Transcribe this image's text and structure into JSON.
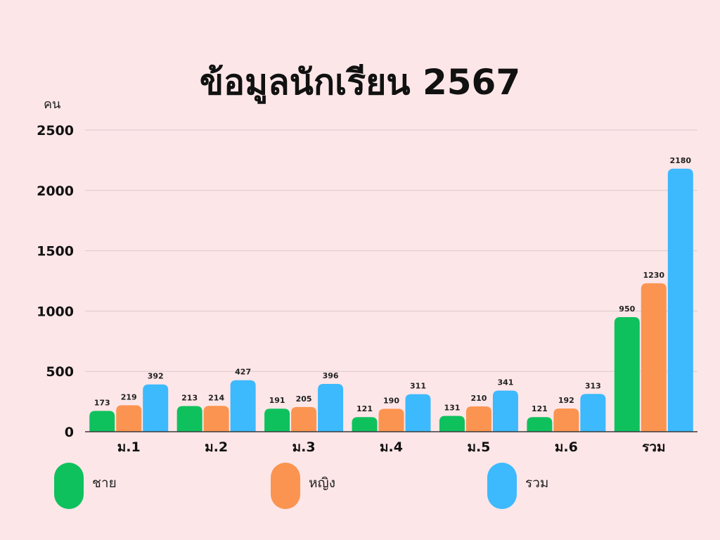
{
  "title": "ข้อมูลนักเรียน 2567",
  "unit_label": "คน",
  "colors": {
    "background": "#fde6e8",
    "male": "#0fc15d",
    "female": "#fb9450",
    "total": "#3db9fd",
    "grid": "#d9c9cb"
  },
  "chart_data": {
    "type": "bar",
    "title": "ข้อมูลนักเรียน 2567",
    "ylabel": "คน",
    "xlabel": "",
    "categories": [
      "ม.1",
      "ม.2",
      "ม.3",
      "ม.4",
      "ม.5",
      "ม.6",
      "รวม"
    ],
    "series": [
      {
        "name": "ชาย",
        "color": "#0fc15d",
        "values": [
          173,
          213,
          191,
          121,
          131,
          121,
          950
        ]
      },
      {
        "name": "หญิง",
        "color": "#fb9450",
        "values": [
          219,
          214,
          205,
          190,
          210,
          192,
          1230
        ]
      },
      {
        "name": "รวม",
        "color": "#3db9fd",
        "values": [
          392,
          427,
          396,
          311,
          341,
          313,
          2180
        ]
      }
    ],
    "ylim": [
      0,
      2500
    ],
    "yticks": [
      0,
      500,
      1000,
      1500,
      2000,
      2500
    ],
    "grid": true,
    "legend": "bottom"
  }
}
